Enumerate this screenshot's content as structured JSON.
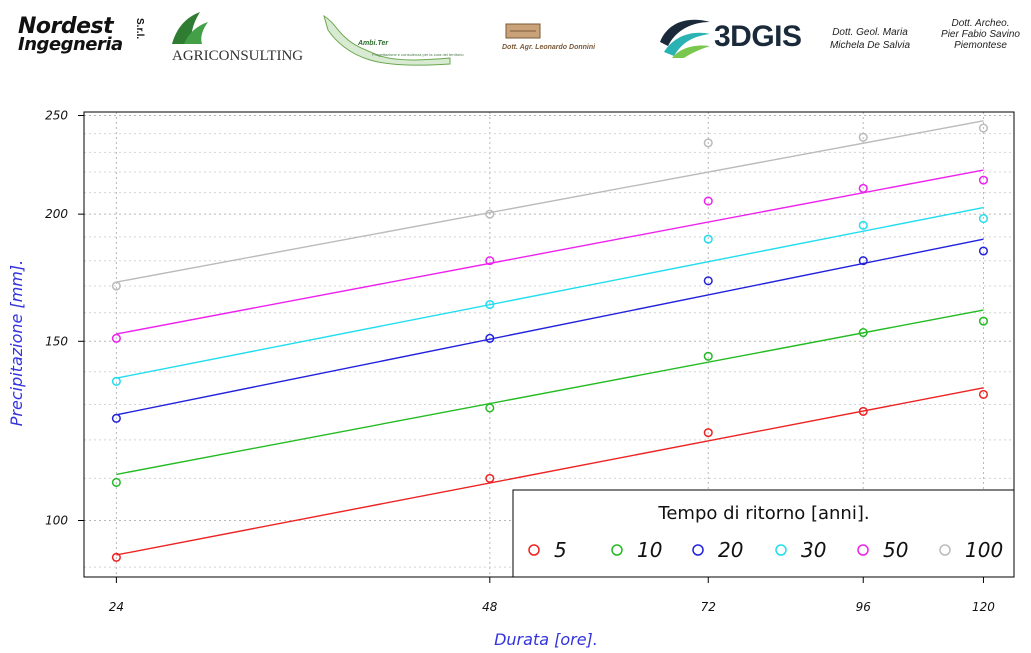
{
  "header": {
    "logos": {
      "nordest": {
        "line1": "Nordest",
        "line2": "Ingegneria",
        "suffix": "S.r.l."
      },
      "agriconsulting": {
        "name": "AGRICONSULTING"
      },
      "ambiter": {
        "name": "Ambi.Ter",
        "tagline": "Progettazione e consulenza per la cura del territorio"
      },
      "donnini": {
        "name": "Dott. Agr. Leonardo Donnini"
      },
      "gis": {
        "name": "3DGIS"
      }
    },
    "credits": [
      {
        "lines": [
          "Dott. Geol. Maria",
          "Michela De Salvia"
        ]
      },
      {
        "lines": [
          "Dott. Archeo.",
          "Pier Fabio Savino",
          "Piemontese"
        ]
      }
    ]
  },
  "chart_data": {
    "type": "scatter",
    "title": "",
    "xlabel": "Durata [ore].",
    "ylabel": "Precipitazione [mm].",
    "xscale": "log",
    "yscale": "log",
    "xlim": [
      22.6,
      127
    ],
    "ylim": [
      88,
      252
    ],
    "xticks": [
      24,
      48,
      72,
      96,
      120
    ],
    "yticks": [
      100,
      150,
      200,
      250
    ],
    "grid": true,
    "legend": {
      "title": "Tempo di ritorno [anni].",
      "position": "bottom-right"
    },
    "series": [
      {
        "name": "5",
        "color": "#ee2222",
        "points": [
          [
            24,
            92
          ],
          [
            48,
            110
          ],
          [
            72,
            122
          ],
          [
            96,
            128
          ],
          [
            120,
            133
          ]
        ],
        "fit": [
          [
            24,
            92.5
          ],
          [
            120,
            135
          ]
        ]
      },
      {
        "name": "10",
        "color": "#22bb22",
        "points": [
          [
            24,
            109
          ],
          [
            48,
            129
          ],
          [
            72,
            145
          ],
          [
            96,
            153
          ],
          [
            120,
            157
          ]
        ],
        "fit": [
          [
            24,
            111
          ],
          [
            120,
            161
          ]
        ]
      },
      {
        "name": "20",
        "color": "#2222dd",
        "points": [
          [
            24,
            126
          ],
          [
            48,
            151
          ],
          [
            72,
            172
          ],
          [
            96,
            180
          ],
          [
            120,
            184
          ]
        ],
        "fit": [
          [
            24,
            127
          ],
          [
            120,
            189
          ]
        ]
      },
      {
        "name": "30",
        "color": "#22ddee",
        "points": [
          [
            24,
            137
          ],
          [
            48,
            163
          ],
          [
            72,
            189
          ],
          [
            96,
            195
          ],
          [
            120,
            198
          ]
        ],
        "fit": [
          [
            24,
            138
          ],
          [
            120,
            203
          ]
        ]
      },
      {
        "name": "50",
        "color": "#ee22ee",
        "points": [
          [
            24,
            151
          ],
          [
            48,
            180
          ],
          [
            72,
            206
          ],
          [
            96,
            212
          ],
          [
            120,
            216
          ]
        ],
        "fit": [
          [
            24,
            152.5
          ],
          [
            120,
            221
          ]
        ]
      },
      {
        "name": "100",
        "color": "#bbbbbb",
        "points": [
          [
            24,
            170
          ],
          [
            48,
            200
          ],
          [
            72,
            235
          ],
          [
            96,
            238
          ],
          [
            120,
            243
          ]
        ],
        "fit": [
          [
            24,
            171.5
          ],
          [
            120,
            247
          ]
        ]
      }
    ]
  }
}
